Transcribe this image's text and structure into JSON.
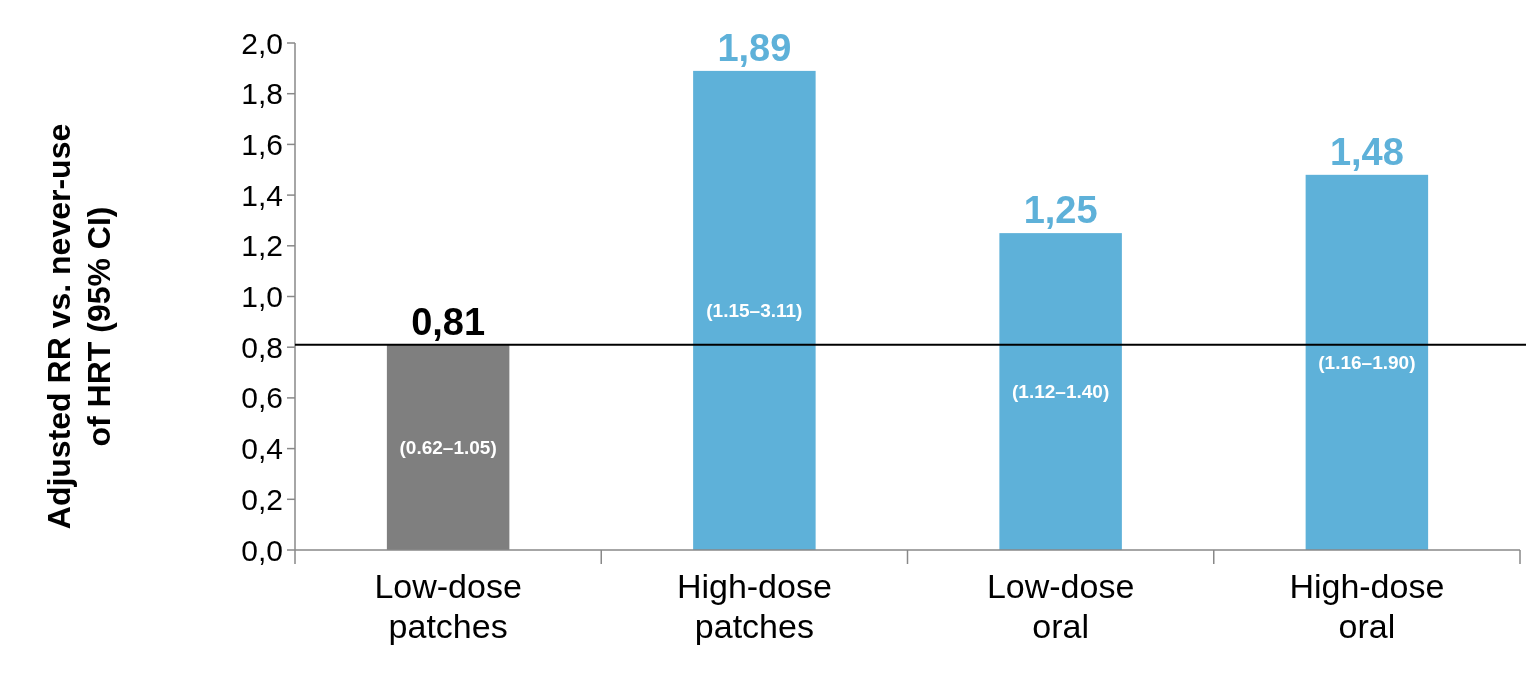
{
  "chart_data": {
    "type": "bar",
    "ylabel": "Adjusted RR vs. never-use\nof HRT (95% CI)",
    "categories": [
      "Low-dose patches",
      "High-dose patches",
      "Low-dose oral",
      "High-dose oral"
    ],
    "values": [
      0.81,
      1.89,
      1.25,
      1.48
    ],
    "colors": [
      "#7f7f7f",
      "#5eb1d9",
      "#5eb1d9",
      "#5eb1d9"
    ],
    "value_labels": [
      "0,81",
      "1,89",
      "1,25",
      "1,48"
    ],
    "ylim": [
      0,
      2
    ],
    "yticks": [
      {
        "value": 0,
        "label": "0,0"
      },
      {
        "value": 0.2,
        "label": "0,2"
      },
      {
        "value": 0.4,
        "label": "0,4"
      },
      {
        "value": 0.6,
        "label": "0,6"
      },
      {
        "value": 0.8,
        "label": "0,8"
      },
      {
        "value": 1,
        "label": "1,0"
      },
      {
        "value": 1.2,
        "label": "1,2"
      },
      {
        "value": 1.4,
        "label": "1,4"
      },
      {
        "value": 1.6,
        "label": "1,6"
      },
      {
        "value": 1.8,
        "label": "1,8"
      },
      {
        "value": 2,
        "label": "2,0"
      }
    ],
    "ref_lines": [
      {
        "axis": "y",
        "value": 0.81,
        "color": "#000000"
      }
    ],
    "annotations": [
      "(0.62–1.05)",
      "(1.15–3.11)",
      "(1.12–1.40)",
      "(1.16–1.90)"
    ],
    "grid": false
  }
}
